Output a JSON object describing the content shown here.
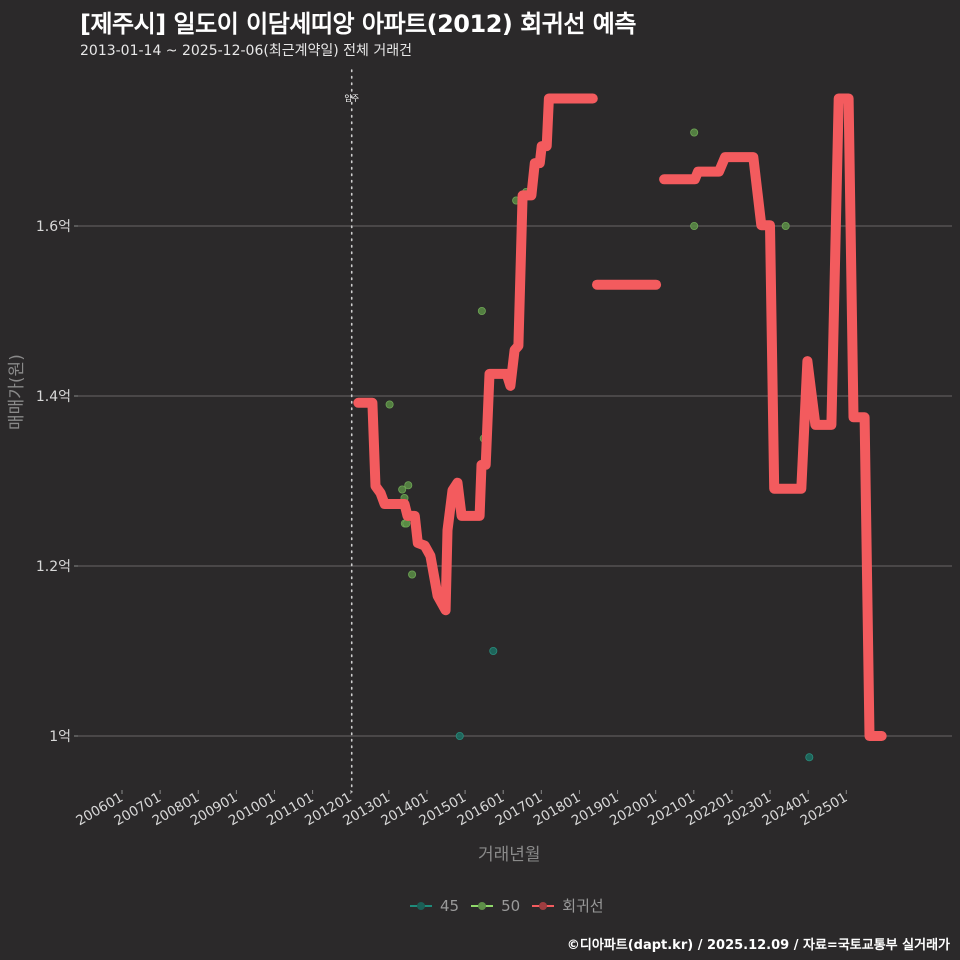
{
  "title": "[제주시] 일도이 이담세띠앙 아파트(2012) 회귀선 예측",
  "subtitle": "2013-01-14 ~ 2025-12-06(최근계약일) 전체 거래건",
  "credit": "©디아파트(dapt.kr) / 2025.12.09 / 자료=국토교통부 실거래가",
  "chart_data": {
    "type": "line",
    "title": "[제주시] 일도이 이담세띠앙 아파트(2012) 회귀선 예측",
    "subtitle": "2013-01-14 ~ 2025-12-06(최근계약일) 전체 거래건",
    "xlabel": "거래년월",
    "ylabel": "매매가(원)",
    "x_ticks": [
      "200601",
      "200701",
      "200801",
      "200901",
      "201001",
      "201101",
      "201201",
      "201301",
      "201401",
      "201501",
      "201601",
      "201701",
      "201801",
      "201901",
      "202001",
      "202101",
      "202201",
      "202301",
      "202401",
      "202501"
    ],
    "y_ticks": [
      {
        "value": 1.0,
        "label": "1억"
      },
      {
        "value": 1.2,
        "label": "1.2억"
      },
      {
        "value": 1.4,
        "label": "1.4억"
      },
      {
        "value": 1.6,
        "label": "1.6억"
      }
    ],
    "ylim": [
      0.93,
      1.77
    ],
    "grid": "horizontal",
    "annotation": {
      "x": "201201",
      "label": "입주",
      "style": "dotted vertical line"
    },
    "legend": {
      "position": "bottom",
      "entries": [
        {
          "name": "45",
          "color": "#1f8a7a"
        },
        {
          "name": "50",
          "color": "#8fd86a"
        },
        {
          "name": "회귀선",
          "color": "#f35b5e"
        }
      ]
    },
    "series": [
      {
        "name": "회귀선",
        "type": "step-line",
        "unit": "억",
        "segments": [
          [
            {
              "x": "2012.20",
              "y": 1.392
            },
            {
              "x": "2012.57",
              "y": 1.392
            },
            {
              "x": "2012.65",
              "y": 1.294
            },
            {
              "x": "2012.78",
              "y": 1.286
            },
            {
              "x": "2012.89",
              "y": 1.273
            },
            {
              "x": "2013.41",
              "y": 1.273
            },
            {
              "x": "2013.49",
              "y": 1.259
            },
            {
              "x": "2013.68",
              "y": 1.259
            },
            {
              "x": "2013.76",
              "y": 1.227
            },
            {
              "x": "2013.94",
              "y": 1.224
            },
            {
              "x": "2014.09",
              "y": 1.212
            },
            {
              "x": "2014.28",
              "y": 1.165
            },
            {
              "x": "2014.49",
              "y": 1.148
            },
            {
              "x": "2014.54",
              "y": 1.242
            },
            {
              "x": "2014.67",
              "y": 1.289
            },
            {
              "x": "2014.80",
              "y": 1.298
            },
            {
              "x": "2014.91",
              "y": 1.259
            },
            {
              "x": "2015.38",
              "y": 1.259
            },
            {
              "x": "2015.43",
              "y": 1.319
            },
            {
              "x": "2015.54",
              "y": 1.319
            },
            {
              "x": "2015.64",
              "y": 1.426
            },
            {
              "x": "2016.09",
              "y": 1.426
            },
            {
              "x": "2016.19",
              "y": 1.412
            },
            {
              "x": "2016.30",
              "y": 1.454
            },
            {
              "x": "2016.40",
              "y": 1.459
            },
            {
              "x": "2016.51",
              "y": 1.636
            },
            {
              "x": "2016.74",
              "y": 1.636
            },
            {
              "x": "2016.83",
              "y": 1.674
            },
            {
              "x": "2016.96",
              "y": 1.674
            },
            {
              "x": "2017.01",
              "y": 1.694
            },
            {
              "x": "2017.14",
              "y": 1.694
            },
            {
              "x": "2017.20",
              "y": 1.75
            },
            {
              "x": "2018.35",
              "y": 1.75
            }
          ],
          [
            {
              "x": "2018.46",
              "y": 1.531
            },
            {
              "x": "2020.01",
              "y": 1.531
            }
          ],
          [
            {
              "x": "2020.22",
              "y": 1.655
            },
            {
              "x": "2021.03",
              "y": 1.655
            },
            {
              "x": "2021.11",
              "y": 1.664
            },
            {
              "x": "2021.66",
              "y": 1.664
            },
            {
              "x": "2021.82",
              "y": 1.681
            },
            {
              "x": "2022.56",
              "y": 1.681
            },
            {
              "x": "2022.77",
              "y": 1.601
            },
            {
              "x": "2023.00",
              "y": 1.601
            },
            {
              "x": "2023.11",
              "y": 1.291
            },
            {
              "x": "2023.82",
              "y": 1.291
            },
            {
              "x": "2023.98",
              "y": 1.441
            },
            {
              "x": "2024.19",
              "y": 1.366
            },
            {
              "x": "2024.61",
              "y": 1.366
            },
            {
              "x": "2024.80",
              "y": 1.75
            },
            {
              "x": "2025.06",
              "y": 1.75
            },
            {
              "x": "2025.19",
              "y": 1.375
            },
            {
              "x": "2025.48",
              "y": 1.375
            },
            {
              "x": "2025.61",
              "y": 1.0
            },
            {
              "x": "2025.93",
              "y": 1.0
            }
          ]
        ]
      },
      {
        "name": "45",
        "type": "scatter",
        "unit": "억",
        "points": [
          {
            "x": "2014.86",
            "y": 1.0
          },
          {
            "x": "2015.74",
            "y": 1.1
          },
          {
            "x": "2024.03",
            "y": 0.975
          }
        ]
      },
      {
        "name": "50",
        "type": "scatter",
        "unit": "억",
        "points": [
          {
            "x": "2013.02",
            "y": 1.39
          },
          {
            "x": "2013.35",
            "y": 1.29
          },
          {
            "x": "2013.51",
            "y": 1.295
          },
          {
            "x": "2013.41",
            "y": 1.28
          },
          {
            "x": "2013.42",
            "y": 1.25
          },
          {
            "x": "2013.46",
            "y": 1.25
          },
          {
            "x": "2013.61",
            "y": 1.19
          },
          {
            "x": "2015.44",
            "y": 1.5
          },
          {
            "x": "2015.49",
            "y": 1.35
          },
          {
            "x": "2016.34",
            "y": 1.63
          },
          {
            "x": "2016.60",
            "y": 1.64
          },
          {
            "x": "2021.01",
            "y": 1.71
          },
          {
            "x": "2021.01",
            "y": 1.6
          },
          {
            "x": "2023.41",
            "y": 1.6
          }
        ]
      }
    ]
  },
  "axes": {
    "xlabel": "거래년월",
    "ylabel": "매매가(원)",
    "annotation_label": "입주"
  },
  "legend": {
    "items": [
      {
        "label": "45",
        "color": "#1f8a7a"
      },
      {
        "label": "50",
        "color": "#8fd86a"
      },
      {
        "label": "회귀선",
        "color": "#f35b5e"
      }
    ]
  }
}
